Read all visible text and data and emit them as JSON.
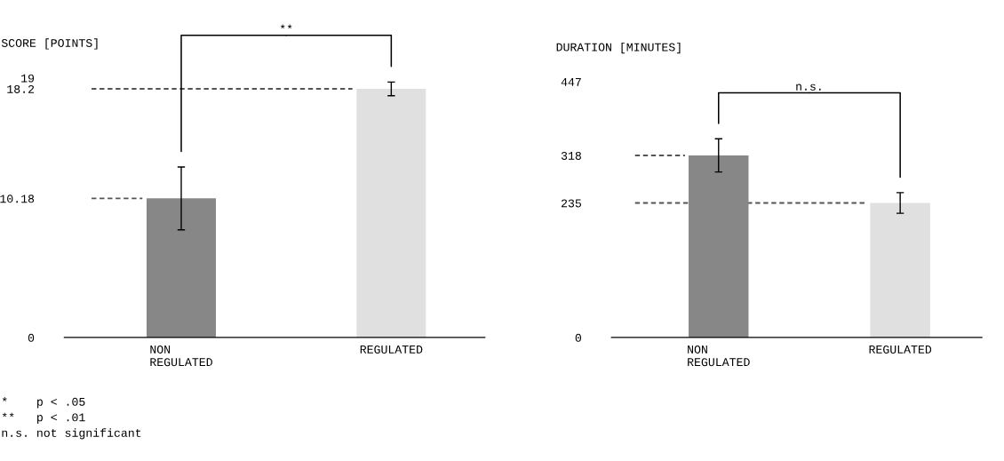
{
  "chart_data": [
    {
      "type": "bar",
      "ylabel": "SCORE [POINTS]",
      "categories": [
        "NON\nREGULATED",
        "REGULATED"
      ],
      "values": [
        10.18,
        18.2
      ],
      "colors": [
        "#878787",
        "#e0e0e0"
      ],
      "errors": [
        2.3,
        0.5
      ],
      "ylim": [
        0,
        19
      ],
      "yticks": [
        0,
        10.18,
        18.2,
        19
      ],
      "ref_lines": [
        {
          "axis": "y",
          "value": 10.18,
          "line_style": "dashed",
          "color": "#555555"
        },
        {
          "axis": "y",
          "value": 18.2,
          "line_style": "dashed",
          "color": "#555555"
        }
      ],
      "annotations": [
        "**",
        "*    p < .05",
        "**   p < .01",
        "n.s. not significant"
      ],
      "grid": false,
      "legend": false
    },
    {
      "type": "bar",
      "ylabel": "DURATION [MINUTES]",
      "categories": [
        "NON\nREGULATED",
        "REGULATED"
      ],
      "values": [
        318,
        235
      ],
      "colors": [
        "#878787",
        "#e0e0e0"
      ],
      "errors": [
        29,
        18
      ],
      "ylim": [
        0,
        447
      ],
      "yticks": [
        0,
        235,
        318,
        447
      ],
      "ref_lines": [
        {
          "axis": "y",
          "value": 318,
          "line_style": "dashed",
          "color": "#555555"
        },
        {
          "axis": "y",
          "value": 235,
          "line_style": "dashed",
          "color": "#555555"
        }
      ],
      "annotations": [
        "n.s."
      ],
      "grid": false,
      "legend": false
    }
  ]
}
